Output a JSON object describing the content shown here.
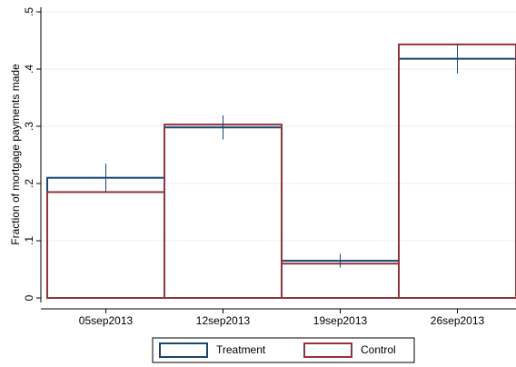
{
  "chart_data": {
    "type": "bar",
    "ylabel": "Fraction of mortgage payments made",
    "categories": [
      "05sep2013",
      "12sep2013",
      "19sep2013",
      "26sep2013"
    ],
    "series": [
      {
        "name": "Treatment",
        "color": "#1a476f",
        "values": [
          0.21,
          0.298,
          0.065,
          0.418
        ],
        "errors": [
          0.025,
          0.021,
          0.012,
          0.026
        ]
      },
      {
        "name": "Control",
        "color": "#90353b",
        "values": [
          0.185,
          0.303,
          0.06,
          0.443
        ]
      }
    ],
    "ylim": [
      0,
      0.5
    ],
    "yticks": [
      0,
      {
        "value": 0.1,
        "label": ".1"
      },
      {
        "value": 0.2,
        "label": ".2"
      },
      {
        "value": 0.3,
        "label": ".3"
      },
      {
        "value": 0.4,
        "label": ".4"
      },
      {
        "value": 0.5,
        "label": ".5"
      }
    ],
    "grid": true
  }
}
